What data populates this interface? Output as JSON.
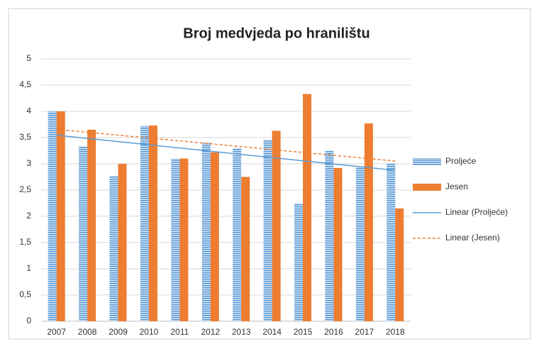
{
  "chart_data": {
    "type": "bar",
    "title": "Broj medvjeda po hranilištu",
    "categories": [
      "2007",
      "2008",
      "2009",
      "2010",
      "2011",
      "2012",
      "2013",
      "2014",
      "2015",
      "2016",
      "2017",
      "2018"
    ],
    "series": [
      {
        "name": "Proljeće",
        "color": "#5b9bd5",
        "values": [
          4.0,
          3.33,
          2.77,
          3.72,
          3.1,
          3.4,
          3.3,
          3.45,
          2.25,
          3.25,
          2.95,
          3.0
        ]
      },
      {
        "name": "Jesen",
        "color": "#ed7d31",
        "values": [
          4.0,
          3.65,
          3.0,
          3.73,
          3.1,
          3.22,
          2.75,
          3.63,
          4.33,
          2.92,
          3.77,
          2.15
        ]
      }
    ],
    "trendlines": [
      {
        "name": "Linear (Proljeće)",
        "series": 0,
        "fit": "linear",
        "color": "#5b9bd5",
        "dashed": false
      },
      {
        "name": "Linear (Jesen)",
        "series": 1,
        "fit": "linear",
        "color": "#ed7d31",
        "dashed": true
      }
    ],
    "ylim": [
      0,
      5
    ],
    "yticks": [
      0,
      {
        "value": 0.5,
        "label": "0,5"
      },
      1,
      {
        "value": 1.5,
        "label": "1,5"
      },
      2,
      {
        "value": 2.5,
        "label": "2,5"
      },
      3,
      {
        "value": 3.5,
        "label": "3,5"
      },
      4,
      {
        "value": 4.5,
        "label": "4,5"
      },
      5
    ],
    "grid": true,
    "legend": "right"
  }
}
